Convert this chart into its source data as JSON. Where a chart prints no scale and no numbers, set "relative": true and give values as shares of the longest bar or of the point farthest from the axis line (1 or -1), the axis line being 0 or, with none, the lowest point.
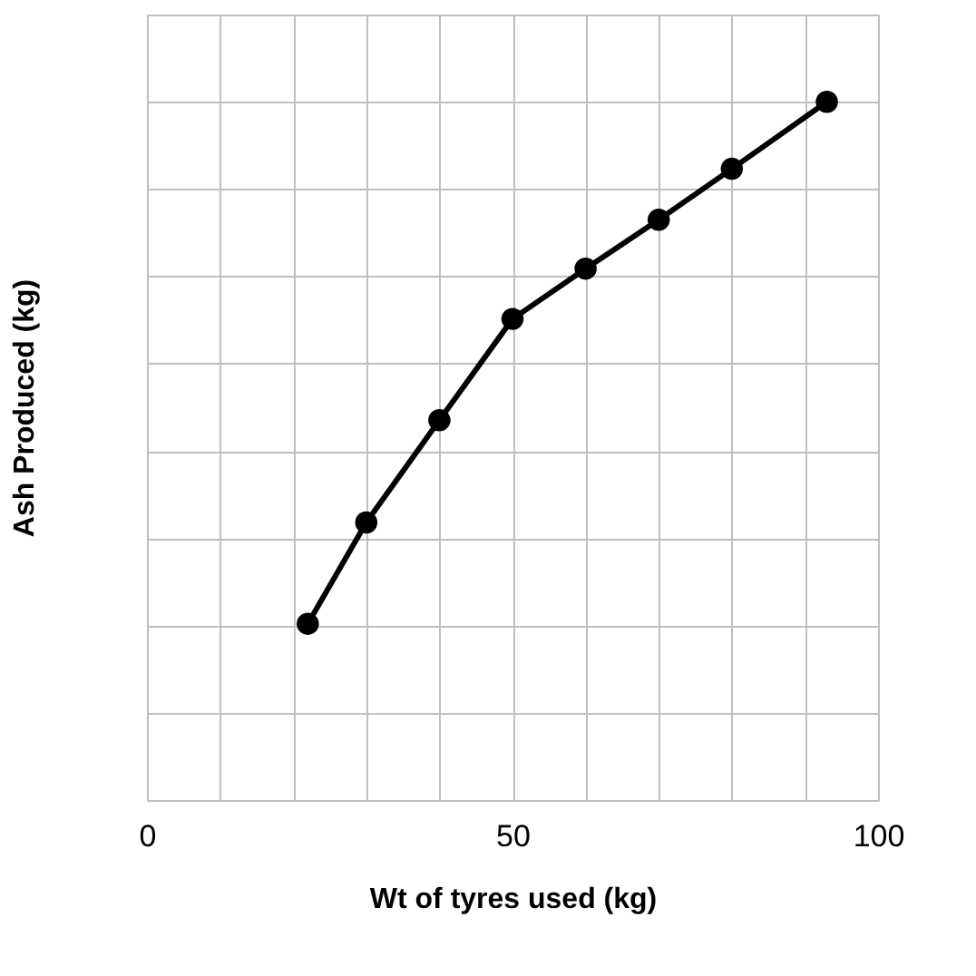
{
  "chart_data": {
    "type": "line",
    "xlabel": "Wt of tyres  used (kg)",
    "ylabel": "Ash Produced (kg)",
    "relative": true,
    "x": [
      22,
      30,
      40,
      50,
      60,
      70,
      80,
      93
    ],
    "series": [
      {
        "color": "#000000",
        "values": [
          0.2525,
          0.3975,
          0.544,
          0.689,
          0.761,
          0.831,
          0.904,
          1
        ]
      }
    ],
    "xlim": [
      0,
      100
    ],
    "xticks": [
      0,
      {
        "value": 10,
        "label": null
      },
      {
        "value": 20,
        "label": null
      },
      {
        "value": 30,
        "label": null
      },
      {
        "value": 40,
        "label": null
      },
      50,
      {
        "value": 60,
        "label": null
      },
      {
        "value": 70,
        "label": null
      },
      {
        "value": 80,
        "label": null
      },
      {
        "value": 90,
        "label": null
      },
      100
    ],
    "grid": true,
    "marker": "circle",
    "line_style": "solid",
    "legend": false
  }
}
